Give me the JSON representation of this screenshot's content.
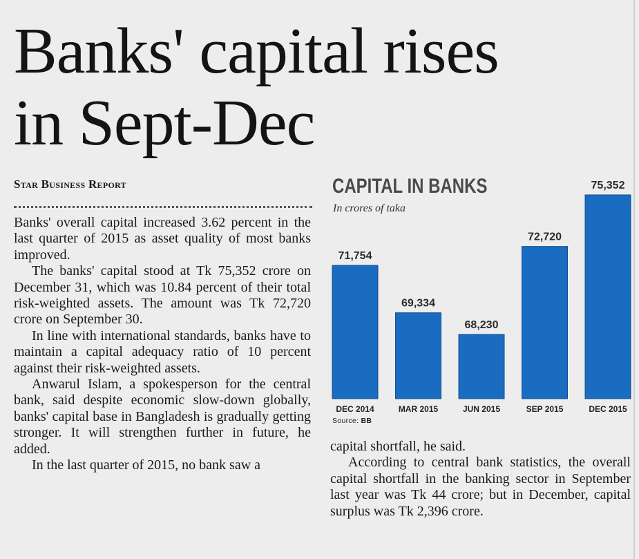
{
  "article": {
    "headline_line1": "Banks' capital rises",
    "headline_line2": "in Sept-Dec",
    "byline": "Star Business Report",
    "left_paragraphs": [
      "Banks' overall capital increased 3.62 percent in the last quarter of 2015 as asset quality of most banks improved.",
      "The banks' capital stood at Tk 75,352 crore on December 31, which was 10.84 percent of their total risk-weighted assets. The amount was Tk 72,720 crore on September 30.",
      "In line with international standards, banks have to maintain a capital adequacy ratio of 10 percent against their risk-weighted assets.",
      "Anwarul Islam, a spokesperson for the central bank, said despite economic slow-down globally, banks' capital base in Bangladesh is gradually getting stronger. It will strengthen further in future, he added.",
      "In the last quarter of 2015, no bank saw a"
    ],
    "right_paragraphs": [
      "capital shortfall, he said.",
      "According to central bank statistics, the overall capital shortfall in the banking sector in September last year was Tk 44 crore; but in December, capital surplus was Tk 2,396 crore."
    ]
  },
  "chart_data": {
    "type": "bar",
    "title": "CAPITAL IN BANKS",
    "subtitle": "In crores of taka",
    "source_prefix": "Source: ",
    "source_name": "BB",
    "categories": [
      "DEC 2014",
      "MAR 2015",
      "JUN 2015",
      "SEP 2015",
      "DEC 2015"
    ],
    "values": [
      71754,
      69334,
      68230,
      72720,
      75352
    ],
    "value_labels": [
      "71,754",
      "69,334",
      "68,230",
      "72,720",
      "75,352"
    ],
    "bar_color": "#1a6cc0",
    "grid": false,
    "legend": "none"
  }
}
